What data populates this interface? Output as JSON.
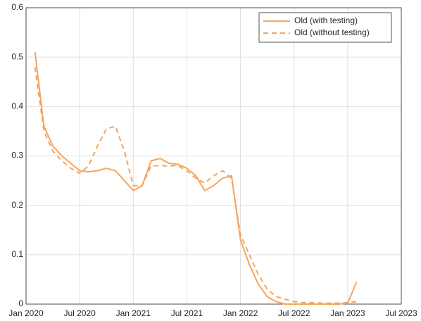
{
  "chart_data": {
    "type": "line",
    "x": [
      "2020-02",
      "2020-03",
      "2020-04",
      "2020-05",
      "2020-06",
      "2020-07",
      "2020-08",
      "2020-09",
      "2020-10",
      "2020-11",
      "2020-12",
      "2021-01",
      "2021-02",
      "2021-03",
      "2021-04",
      "2021-05",
      "2021-06",
      "2021-07",
      "2021-08",
      "2021-09",
      "2021-10",
      "2021-11",
      "2021-12",
      "2022-01",
      "2022-02",
      "2022-03",
      "2022-04",
      "2022-05",
      "2022-06",
      "2022-07",
      "2022-08",
      "2022-09",
      "2022-10",
      "2022-11",
      "2022-12",
      "2023-01",
      "2023-02"
    ],
    "series": [
      {
        "name": "Old (with testing)",
        "color": "#f5a55a",
        "dash": "solid",
        "values": [
          0.51,
          0.36,
          0.32,
          0.3,
          0.285,
          0.27,
          0.268,
          0.27,
          0.275,
          0.27,
          0.25,
          0.23,
          0.24,
          0.29,
          0.295,
          0.285,
          0.283,
          0.275,
          0.26,
          0.23,
          0.24,
          0.255,
          0.26,
          0.13,
          0.08,
          0.04,
          0.015,
          0.005,
          0,
          0,
          0,
          0,
          0,
          0,
          0,
          0.002,
          0.045
        ]
      },
      {
        "name": "Old (without testing)",
        "color": "#f5a55a",
        "dash": "dashed",
        "values": [
          0.48,
          0.35,
          0.31,
          0.29,
          0.275,
          0.265,
          0.28,
          0.32,
          0.355,
          0.36,
          0.31,
          0.24,
          0.24,
          0.28,
          0.28,
          0.28,
          0.28,
          0.27,
          0.255,
          0.245,
          0.26,
          0.27,
          0.255,
          0.14,
          0.1,
          0.06,
          0.03,
          0.015,
          0.01,
          0.005,
          0.003,
          0.003,
          0.002,
          0.002,
          0.002,
          0.003,
          0.005
        ]
      }
    ],
    "xlim": [
      "2020-01",
      "2023-07"
    ],
    "xticks": [
      {
        "value": "2020-01",
        "label": "Jan 2020"
      },
      {
        "value": "2020-07",
        "label": "Jul 2020"
      },
      {
        "value": "2021-01",
        "label": "Jan 2021"
      },
      {
        "value": "2021-07",
        "label": "Jul 2021"
      },
      {
        "value": "2022-01",
        "label": "Jan 2022"
      },
      {
        "value": "2022-07",
        "label": "Jul 2022"
      },
      {
        "value": "2023-01",
        "label": "Jan 2023"
      },
      {
        "value": "2023-07",
        "label": "Jul 2023"
      }
    ],
    "ylim": [
      0,
      0.6
    ],
    "yticks": [
      0,
      0.1,
      0.2,
      0.3,
      0.4,
      0.5,
      0.6
    ],
    "grid": true,
    "legend": "upper-right"
  }
}
